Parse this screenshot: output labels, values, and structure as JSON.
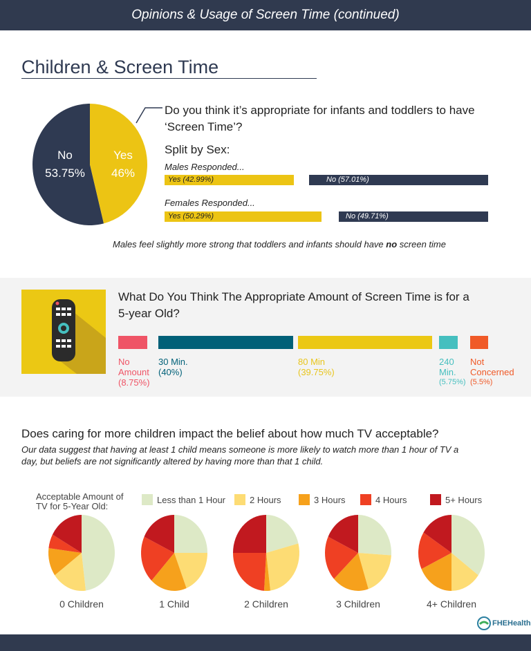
{
  "header": {
    "title": "Opinions & Usage of Screen Time (continued)"
  },
  "section_title": "Children & Screen Time",
  "infant": {
    "question": "Do you think it’s appropriate for infants and toddlers to have ‘Screen Time’?",
    "split_label": "Split by Sex:",
    "males_label": "Males Responded...",
    "females_label": "Females Responded...",
    "males_yes": "Yes (42.99%)",
    "males_no": "No (57.01%)",
    "females_yes": "Yes (50.29%)",
    "females_no": "No (49.71%)",
    "note_pre": "Males feel slightly more strong that toddlers and infants should have ",
    "note_bold": "no",
    "note_post": " screen time"
  },
  "chart_data": [
    {
      "type": "pie",
      "slices": [
        {
          "label": "Yes",
          "value": 46,
          "display": "46%",
          "color": "#ecc414"
        },
        {
          "label": "No",
          "value": 53.75,
          "display": "53.75%",
          "color": "#2f3a52"
        }
      ]
    },
    {
      "type": "bar",
      "title": "Split by Sex",
      "series": [
        {
          "name": "Males Responded...",
          "values": {
            "Yes": 42.99,
            "No": 57.01
          }
        },
        {
          "name": "Females Responded...",
          "values": {
            "Yes": 50.29,
            "No": 49.71
          }
        }
      ]
    },
    {
      "type": "bar",
      "title": "What Do You Think The Appropriate Amount of Screen Time is for a 5-year Old?",
      "categories": [
        "No Amount",
        "30 Min.",
        "80 Min",
        "240 Min.",
        "Not Concerned"
      ],
      "values": [
        8.75,
        40,
        39.75,
        5.75,
        5.5
      ],
      "labels": [
        "(8.75%)",
        "(40%)",
        "(39.75%)",
        "(5.75%)",
        "(5.5%)"
      ],
      "colors": [
        "#ef5466",
        "#006078",
        "#ebc814",
        "#45bfbf",
        "#f05a28"
      ]
    },
    {
      "type": "pie",
      "title": "Acceptable Amount of TV for 5-Year Old:",
      "categories": [
        "Less than 1 Hour",
        "2 Hours",
        "3 Hours",
        "4 Hours",
        "5+ Hours"
      ],
      "colors": [
        "#dde9c6",
        "#fddc74",
        "#f6a11c",
        "#ef4023",
        "#c1191f"
      ],
      "groups": [
        {
          "name": "0 Children",
          "values": [
            48,
            17,
            12,
            6,
            17
          ]
        },
        {
          "name": "1 Child",
          "values": [
            25,
            19,
            18,
            20,
            18
          ]
        },
        {
          "name": "2 Children",
          "values": [
            21,
            27,
            3,
            24,
            25
          ]
        },
        {
          "name": "3 Children",
          "values": [
            26,
            19,
            18,
            19,
            18
          ]
        },
        {
          "name": "4+ Children",
          "values": [
            35,
            15,
            18,
            16,
            16
          ]
        }
      ]
    }
  ],
  "children": {
    "question": "Does caring for more children impact the belief about how much TV acceptable?",
    "desc": "Our data suggest that having at least 1 child means someone is more likely to watch more than 1 hour of TV a day, but beliefs are not significantly altered by having more than that 1 child."
  },
  "logo": "FHEHealth"
}
